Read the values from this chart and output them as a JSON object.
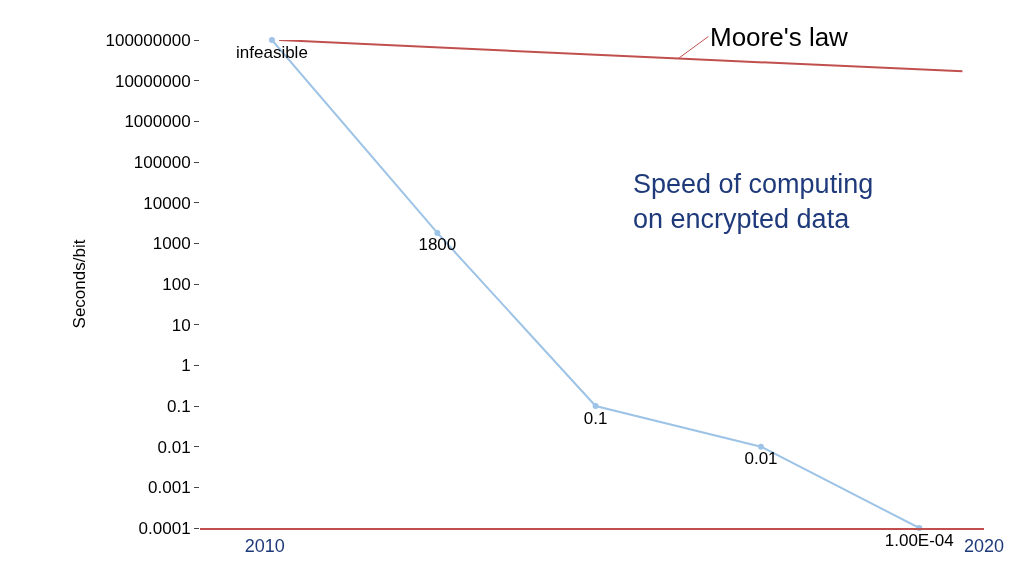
{
  "chart_data": {
    "type": "line",
    "log": "y",
    "ylabel": "Seconds/bit",
    "xlim": [
      2009.1,
      2020
    ],
    "xticks": [
      2010,
      2020
    ],
    "ylim": [
      0.0001,
      100000000
    ],
    "yticks": [
      0.0001,
      0.001,
      0.01,
      0.1,
      1,
      10,
      100,
      1000,
      10000,
      100000,
      1000000,
      10000000,
      100000000
    ],
    "legend": "top right",
    "marker": "circle",
    "series": [
      {
        "color": "#9dc3e6",
        "x": [
          2010.1,
          2012.4,
          2014.6,
          2016.9,
          2019.1
        ],
        "values": [
          100000000,
          1800,
          0.1,
          0.01,
          0.0001
        ],
        "value_labels": [
          "infeasible",
          "1800",
          "0.1",
          "0.01",
          "1.00E-04"
        ]
      },
      {
        "name": "Moore's law",
        "color": "#c0504d",
        "marker": "none",
        "x": [
          2010.2,
          2015.75,
          2019.7
        ],
        "values": [
          100000000,
          35000000,
          17000000
        ]
      }
    ],
    "annotations": [
      "Speed of computing\non encrypted data"
    ]
  }
}
